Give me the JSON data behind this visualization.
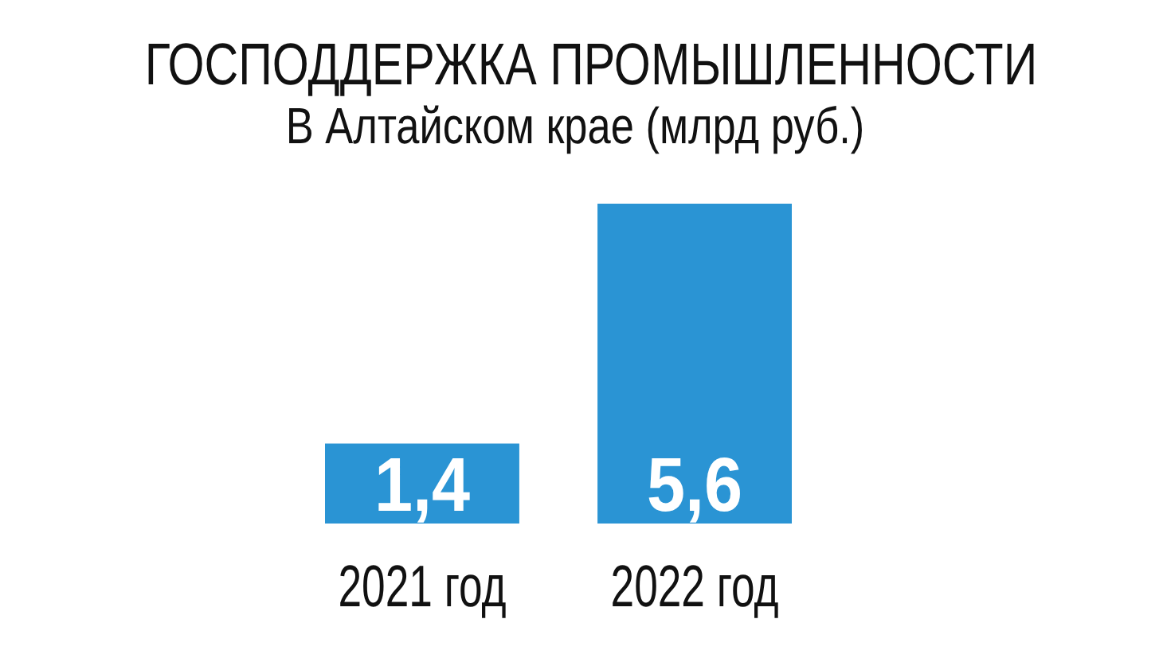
{
  "chart_data": {
    "type": "bar",
    "title": "ГОСПОДДЕРЖКА ПРОМЫШЛЕННОСТИ",
    "subtitle": "В Алтайском крае (млрд руб.)",
    "categories": [
      "2021 год",
      "2022 год"
    ],
    "values": [
      1.4,
      5.6
    ],
    "color": "#2a94d4",
    "value_labels": [
      "1,4",
      "5,6"
    ]
  }
}
